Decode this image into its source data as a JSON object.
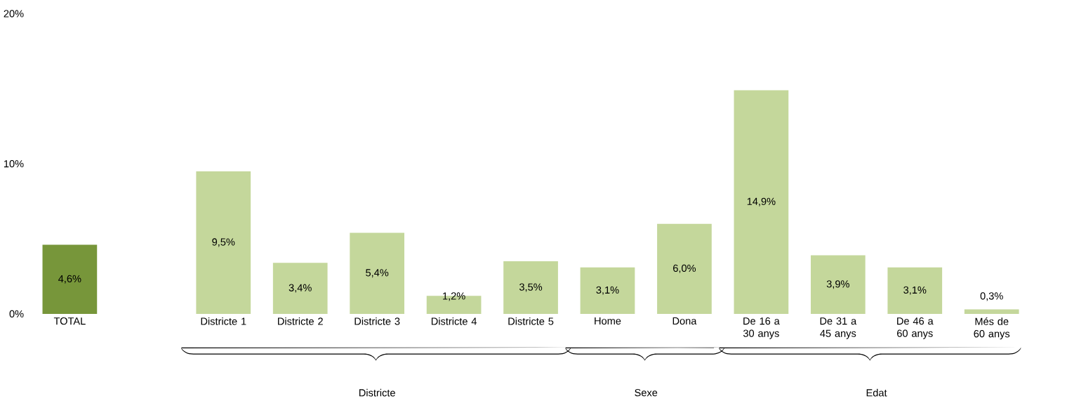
{
  "chart_data": {
    "type": "bar",
    "categories": [
      "TOTAL",
      null,
      "Districte 1",
      "Districte 2",
      "Districte 3",
      "Districte 4",
      "Districte 5",
      "Home",
      "Dona",
      "De 16 a 30 anys",
      "De 31 a 45 anys",
      "De 46 a 60 anys",
      "Més de 60 anys"
    ],
    "values": [
      4.6,
      null,
      9.5,
      3.4,
      5.4,
      1.2,
      3.5,
      3.1,
      6.0,
      14.9,
      3.9,
      3.1,
      0.3
    ],
    "colors": [
      "#77963a",
      null,
      "#c4d79b",
      "#c4d79b",
      "#c4d79b",
      "#c4d79b",
      "#c4d79b",
      "#c4d79b",
      "#c4d79b",
      "#c4d79b",
      "#c4d79b",
      "#c4d79b",
      "#c4d79b"
    ],
    "value_labels": [
      "4,6%",
      null,
      "9,5%",
      "3,4%",
      "5,4%",
      "1,2%",
      "3,5%",
      "3,1%",
      "6,0%",
      "14,9%",
      "3,9%",
      "3,1%",
      "0,3%"
    ],
    "ylim": [
      0,
      20
    ],
    "yticks": [
      {
        "value": 0,
        "label": "0%"
      },
      {
        "value": 10,
        "label": "10%"
      },
      {
        "value": 20,
        "label": "20%"
      }
    ],
    "annotations": [
      "Districte",
      "Sexe",
      "Edat"
    ],
    "grid": false
  }
}
